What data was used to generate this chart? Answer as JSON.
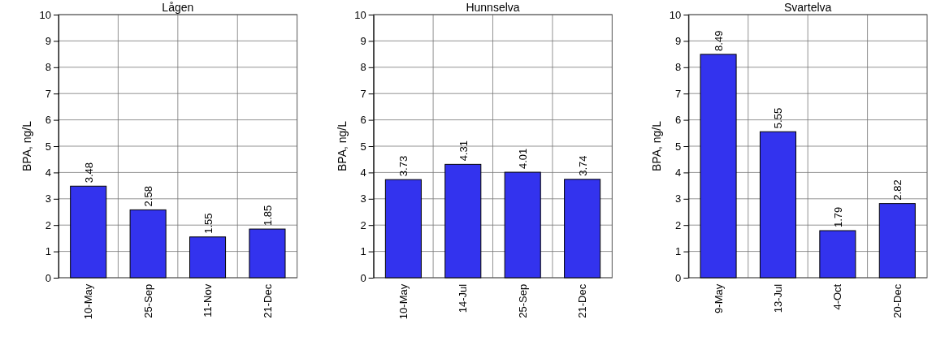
{
  "chart_data": [
    {
      "type": "bar",
      "title": "Lågen",
      "ylabel": "BPA, ng/L",
      "categories": [
        "10-May",
        "25-Sep",
        "11-Nov",
        "21-Dec"
      ],
      "values": [
        3.48,
        2.58,
        1.55,
        1.85
      ],
      "color": "#3333ee",
      "ylim": [
        0,
        10
      ],
      "yticks": [
        0,
        1,
        2,
        3,
        4,
        5,
        6,
        7,
        8,
        9,
        10
      ],
      "grid": true,
      "data_labels": true
    },
    {
      "type": "bar",
      "title": "Hunnselva",
      "ylabel": "BPA, ng/L",
      "categories": [
        "10-May",
        "14-Jul",
        "25-Sep",
        "21-Dec"
      ],
      "values": [
        3.73,
        4.31,
        4.01,
        3.74
      ],
      "color": "#3333ee",
      "ylim": [
        0,
        10
      ],
      "yticks": [
        0,
        1,
        2,
        3,
        4,
        5,
        6,
        7,
        8,
        9,
        10
      ],
      "grid": true,
      "data_labels": true
    },
    {
      "type": "bar",
      "title": "Svartelva",
      "ylabel": "BPA, ng/L",
      "categories": [
        "9-May",
        "13-Jul",
        "4-Oct",
        "20-Dec"
      ],
      "values": [
        8.49,
        5.55,
        1.79,
        2.82
      ],
      "color": "#3333ee",
      "ylim": [
        0,
        10
      ],
      "yticks": [
        0,
        1,
        2,
        3,
        4,
        5,
        6,
        7,
        8,
        9,
        10
      ],
      "grid": true,
      "data_labels": true
    }
  ]
}
